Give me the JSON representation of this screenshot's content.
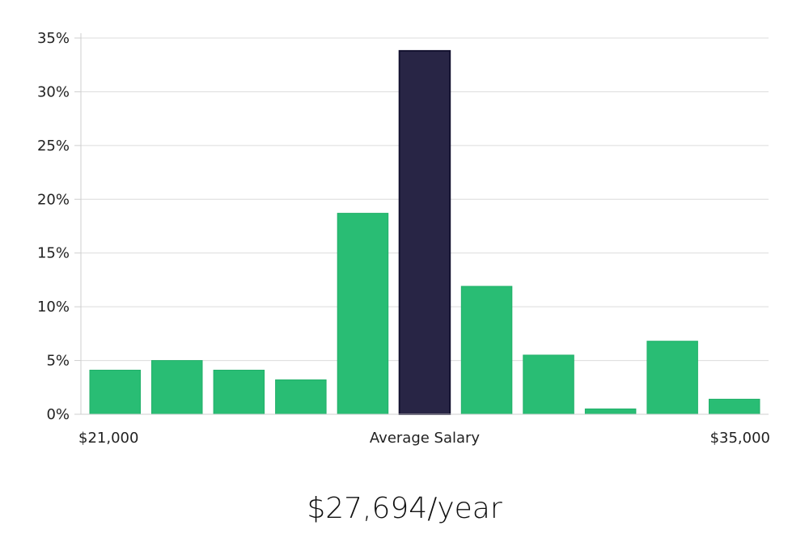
{
  "chart_data": {
    "type": "bar",
    "values": [
      4.1,
      5.0,
      4.1,
      3.2,
      18.7,
      33.8,
      11.9,
      5.5,
      0.5,
      6.8,
      1.4
    ],
    "highlight_index": 5,
    "ylim": [
      0,
      35
    ],
    "yticks": [
      0,
      5,
      10,
      15,
      20,
      25,
      30,
      35
    ],
    "ytick_suffix": "%",
    "x_labels": {
      "left": "$21,000",
      "center": "Average Salary",
      "right": "$35,000"
    },
    "grid": true,
    "colors": {
      "bar": "#29bd74",
      "bar_stroke": "#22b06a",
      "highlight": "#282545",
      "highlight_stroke": "#141230"
    }
  },
  "summary": {
    "salary": "$27,694/year"
  }
}
